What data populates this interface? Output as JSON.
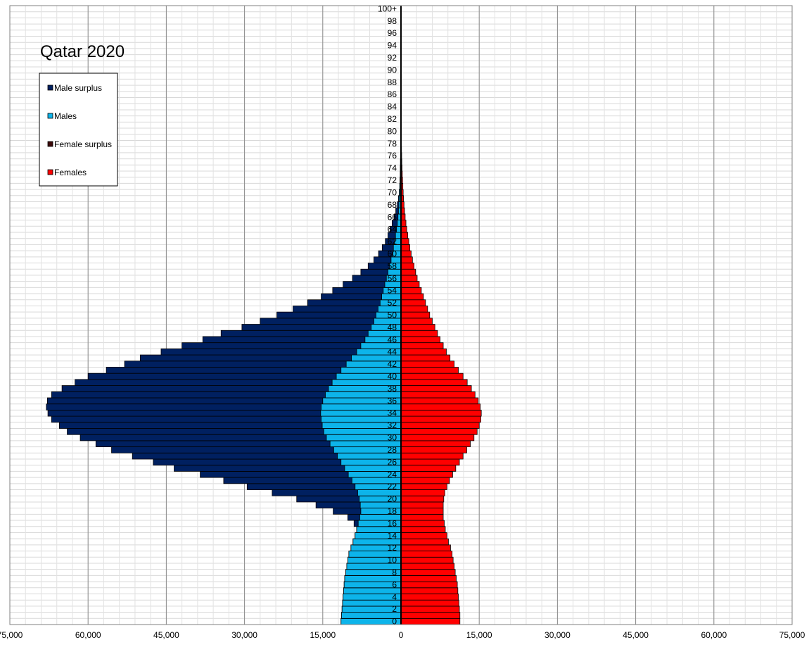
{
  "chart_data": {
    "type": "bar",
    "orientation": "horizontal-population-pyramid",
    "title": "Qatar 2020",
    "legend": [
      {
        "key": "male_surplus",
        "label": "Male surplus",
        "color": "#002060"
      },
      {
        "key": "males",
        "label": "Males",
        "color": "#0DB4EA"
      },
      {
        "key": "female_surplus",
        "label": "Female surplus",
        "color": "#3D0A0A"
      },
      {
        "key": "females",
        "label": "Females",
        "color": "#FF0000"
      }
    ],
    "legend_position": "top-left",
    "grid": true,
    "xlim": [
      -75000,
      75000
    ],
    "x_tick_values": [
      -75000,
      -60000,
      -45000,
      -30000,
      -15000,
      0,
      15000,
      30000,
      45000,
      60000,
      75000
    ],
    "x_tick_labels": [
      "75,000",
      "60,000",
      "45,000",
      "30,000",
      "15,000",
      "0",
      "15,000",
      "30,000",
      "45,000",
      "60,000",
      "75,000"
    ],
    "age_labels": [
      "0",
      "2",
      "4",
      "6",
      "8",
      "10",
      "12",
      "14",
      "16",
      "18",
      "20",
      "22",
      "24",
      "26",
      "28",
      "30",
      "32",
      "34",
      "36",
      "38",
      "40",
      "42",
      "44",
      "46",
      "48",
      "50",
      "52",
      "54",
      "56",
      "58",
      "60",
      "62",
      "64",
      "66",
      "68",
      "70",
      "72",
      "74",
      "76",
      "78",
      "80",
      "82",
      "84",
      "86",
      "88",
      "90",
      "92",
      "94",
      "96",
      "98",
      "100+"
    ],
    "ages": [
      0,
      1,
      2,
      3,
      4,
      5,
      6,
      7,
      8,
      9,
      10,
      11,
      12,
      13,
      14,
      15,
      16,
      17,
      18,
      19,
      20,
      21,
      22,
      23,
      24,
      25,
      26,
      27,
      28,
      29,
      30,
      31,
      32,
      33,
      34,
      35,
      36,
      37,
      38,
      39,
      40,
      41,
      42,
      43,
      44,
      45,
      46,
      47,
      48,
      49,
      50,
      51,
      52,
      53,
      54,
      55,
      56,
      57,
      58,
      59,
      60,
      61,
      62,
      63,
      64,
      65,
      66,
      67,
      68,
      69,
      70,
      71,
      72,
      73,
      74,
      75,
      76,
      77,
      78,
      79,
      80,
      81,
      82,
      83,
      84,
      85,
      86,
      87,
      88,
      89,
      90,
      91,
      92,
      93,
      94,
      95,
      96,
      97,
      98,
      99,
      100
    ],
    "series": [
      {
        "name": "Males",
        "values": [
          11500,
          11400,
          11300,
          11200,
          11100,
          11000,
          10900,
          10800,
          10600,
          10400,
          10200,
          10000,
          9600,
          9200,
          8800,
          8500,
          8200,
          7900,
          7700,
          7800,
          8000,
          8300,
          8800,
          9400,
          10100,
          10800,
          11500,
          12200,
          12900,
          13600,
          14300,
          14800,
          15100,
          15300,
          15400,
          15300,
          15000,
          14500,
          13900,
          13200,
          12400,
          11500,
          10500,
          9500,
          8500,
          7700,
          6900,
          6300,
          5700,
          5200,
          4800,
          4400,
          4000,
          3700,
          3400,
          3100,
          2800,
          2500,
          2200,
          1900,
          1650,
          1450,
          1250,
          1050,
          850,
          700,
          580,
          480,
          400,
          330,
          270,
          220,
          180,
          150,
          120,
          100,
          80,
          65,
          50,
          40,
          30,
          25,
          20,
          15,
          12,
          10,
          8,
          6,
          5,
          4,
          3,
          3,
          2,
          2,
          1,
          1,
          1,
          1,
          1,
          0,
          0
        ]
      },
      {
        "name": "Male surplus",
        "values": [
          11300,
          11200,
          11100,
          11000,
          10900,
          10800,
          10700,
          10500,
          10300,
          10100,
          9900,
          9700,
          9400,
          9000,
          8700,
          8500,
          9000,
          10200,
          13000,
          16300,
          20000,
          24700,
          29500,
          34000,
          38500,
          43500,
          47500,
          51500,
          55500,
          58500,
          61500,
          64000,
          65500,
          67000,
          67700,
          68000,
          67800,
          67000,
          65000,
          62500,
          60000,
          56500,
          53000,
          50000,
          46000,
          42000,
          38000,
          34500,
          30500,
          27000,
          23800,
          20700,
          17900,
          15300,
          13100,
          11100,
          9300,
          7700,
          6300,
          5200,
          4300,
          3600,
          3000,
          2500,
          2100,
          1700,
          1300,
          1000,
          700,
          500,
          350,
          250,
          180,
          130,
          90,
          60,
          40,
          25,
          15,
          10,
          8,
          6,
          5,
          4,
          3,
          2,
          1,
          1,
          1,
          1,
          0,
          0,
          0,
          0,
          0,
          0,
          0,
          0,
          0,
          0,
          0
        ]
      },
      {
        "name": "Females",
        "values": [
          11300,
          11300,
          11200,
          11100,
          11000,
          10900,
          10800,
          10600,
          10400,
          10200,
          10000,
          9800,
          9500,
          9100,
          8800,
          8500,
          8300,
          8100,
          8100,
          8100,
          8200,
          8400,
          8800,
          9300,
          9900,
          10500,
          11200,
          11900,
          12600,
          13300,
          14000,
          14600,
          15000,
          15300,
          15400,
          15200,
          14800,
          14200,
          13500,
          12700,
          11900,
          11000,
          10200,
          9400,
          8700,
          8100,
          7500,
          7000,
          6500,
          6000,
          5500,
          5100,
          4700,
          4300,
          3900,
          3500,
          3100,
          2800,
          2500,
          2200,
          1950,
          1700,
          1500,
          1300,
          1100,
          950,
          800,
          680,
          580,
          490,
          420,
          360,
          300,
          250,
          200,
          160,
          130,
          100,
          80,
          60,
          45,
          35,
          25,
          18,
          12,
          8,
          6,
          4,
          3,
          2,
          2,
          1,
          1,
          1,
          1,
          1,
          1,
          0,
          0,
          0,
          0
        ]
      },
      {
        "name": "Female surplus",
        "values": [
          0,
          0,
          0,
          0,
          0,
          0,
          0,
          0,
          0,
          0,
          0,
          0,
          0,
          0,
          0,
          0,
          0,
          0,
          0,
          0,
          0,
          0,
          0,
          0,
          0,
          0,
          0,
          0,
          0,
          0,
          0,
          0,
          0,
          0,
          0,
          0,
          0,
          0,
          0,
          0,
          0,
          0,
          0,
          0,
          0,
          0,
          0,
          0,
          0,
          0,
          0,
          0,
          0,
          0,
          0,
          0,
          0,
          0,
          0,
          0,
          0,
          0,
          0,
          0,
          0,
          0,
          0,
          0,
          0,
          0,
          0,
          0,
          0,
          0,
          0,
          0,
          0,
          0,
          0,
          0,
          0,
          0,
          0,
          0,
          0,
          0,
          0,
          0,
          0,
          0,
          0,
          0,
          0,
          0,
          0,
          0,
          0,
          0,
          0,
          0,
          0
        ]
      }
    ]
  }
}
